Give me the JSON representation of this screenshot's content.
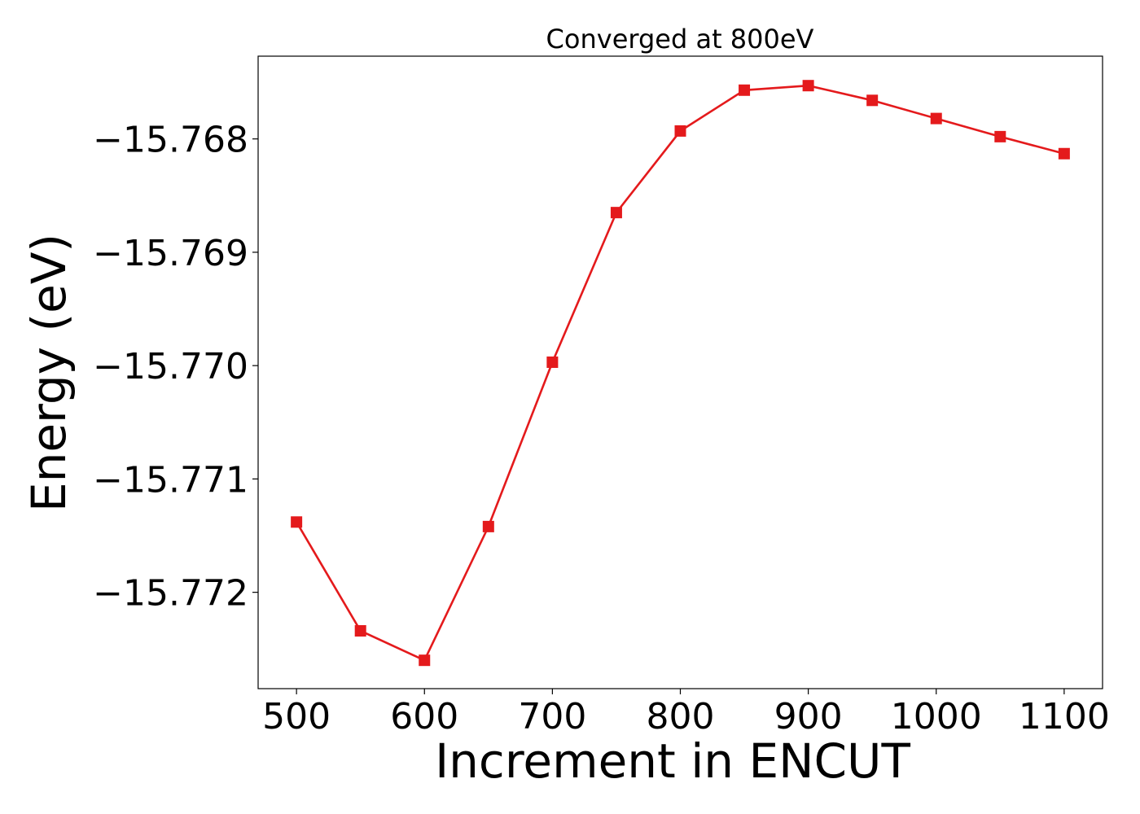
{
  "chart_data": {
    "type": "line",
    "title": "Converged at 800eV",
    "xlabel": "Increment in ENCUT",
    "ylabel": "Energy (eV)",
    "x": [
      500,
      550,
      600,
      650,
      700,
      750,
      800,
      850,
      900,
      950,
      1000,
      1050,
      1100
    ],
    "series": [
      {
        "values": [
          -15.77138,
          -15.77234,
          -15.7726,
          -15.77142,
          -15.76997,
          -15.76865,
          -15.76793,
          -15.76757,
          -15.76753,
          -15.76766,
          -15.76782,
          -15.76798,
          -15.76813
        ],
        "color": "#e41a1c",
        "marker": "square"
      }
    ],
    "xlim": [
      470,
      1130
    ],
    "ylim": [
      -15.77285,
      -15.76727
    ],
    "xticks": [
      500,
      600,
      700,
      800,
      900,
      1000,
      1100
    ],
    "xtick_labels": [
      "500",
      "600",
      "700",
      "800",
      "900",
      "1000",
      "1100"
    ],
    "yticks": [
      -15.768,
      -15.769,
      -15.77,
      -15.771,
      -15.772
    ],
    "ytick_labels": [
      "−15.768",
      "−15.769",
      "−15.770",
      "−15.771",
      "−15.772"
    ],
    "grid": false,
    "legend": "none"
  }
}
